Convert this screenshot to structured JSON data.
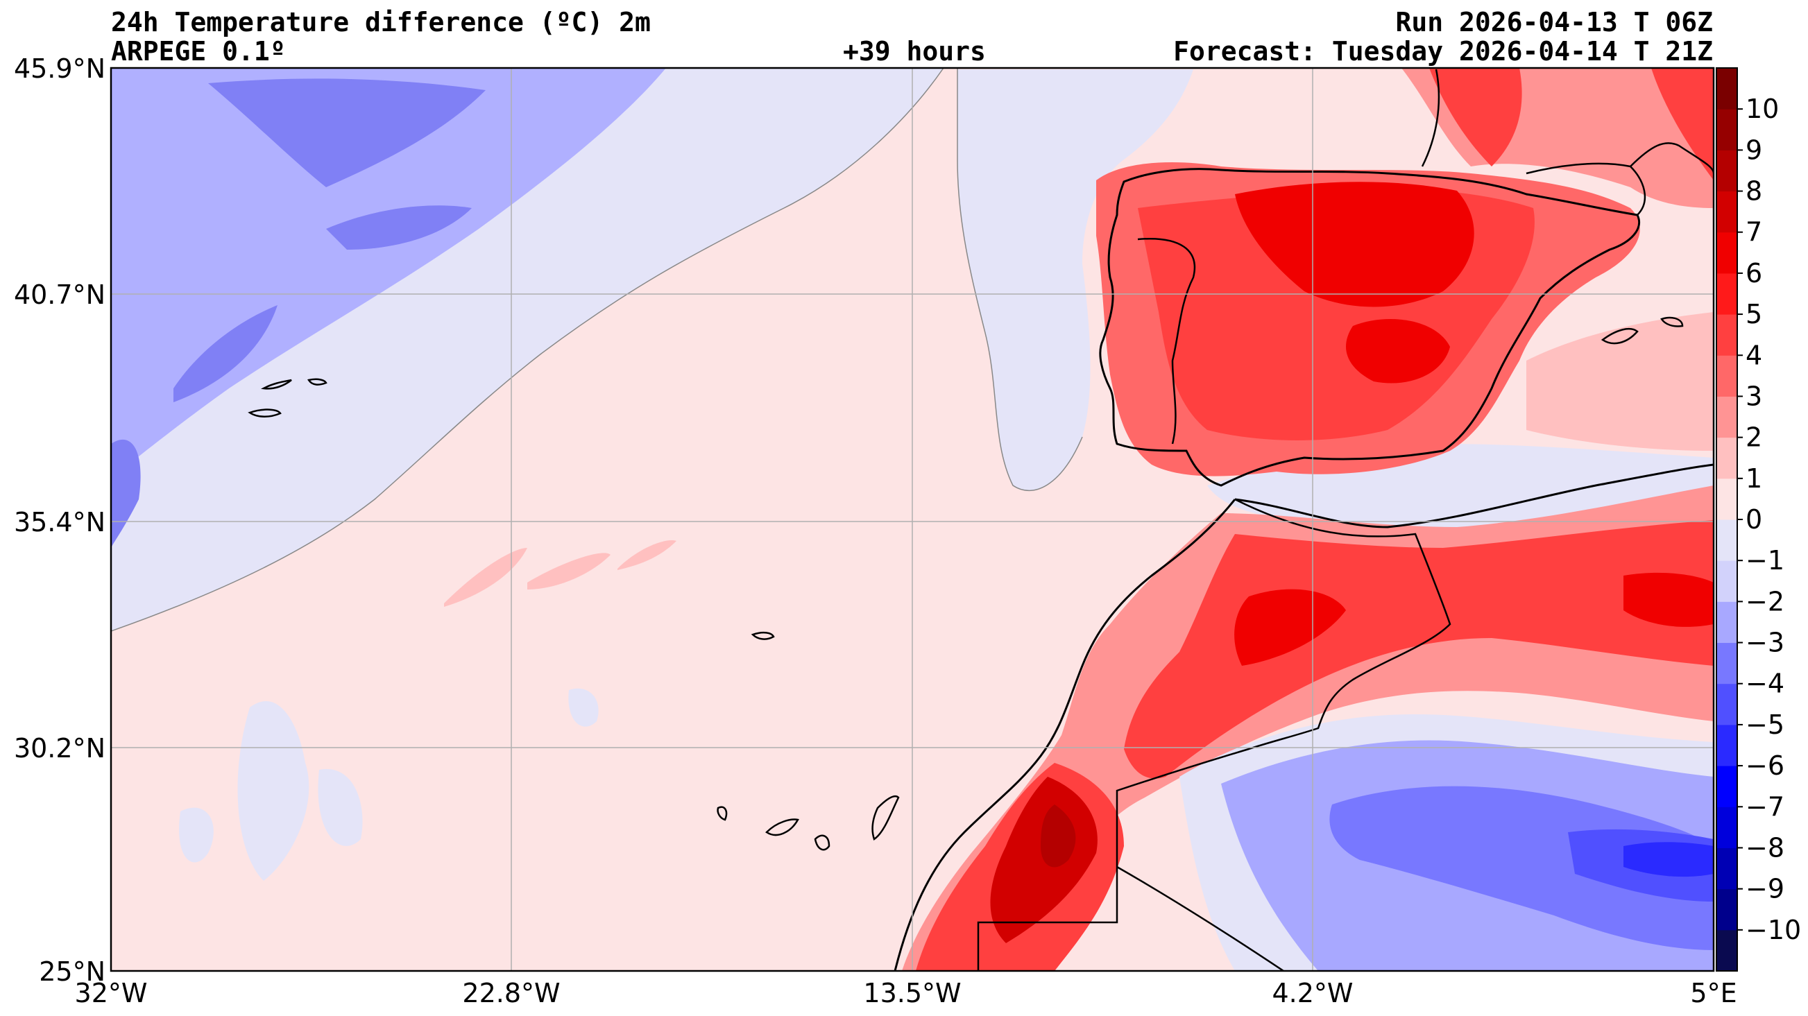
{
  "header": {
    "title": "24h Temperature difference (ºC) 2m",
    "model": "ARPEGE 0.1º",
    "lead_time": "+39 hours",
    "run": "Run 2026-04-13 T 06Z",
    "forecast": "Forecast: Tuesday 2026-04-14 T 21Z"
  },
  "map": {
    "lat_labels": [
      "45.9°N",
      "40.7°N",
      "35.4°N",
      "30.2°N",
      "25°N"
    ],
    "lon_labels": [
      "32°W",
      "22.8°W",
      "13.5°W",
      "4.2°W",
      "5°E"
    ],
    "lon_range": [
      -32,
      5
    ],
    "lat_range": [
      25,
      45.9
    ],
    "gridlines": true
  },
  "colorbar": {
    "ticks": [
      "10",
      "9",
      "8",
      "7",
      "6",
      "5",
      "4",
      "3",
      "2",
      "1",
      "0",
      "−1",
      "−2",
      "−3",
      "−4",
      "−5",
      "−6",
      "−7",
      "−8",
      "−9",
      "−10"
    ],
    "bins": [
      "#0a0a50",
      "#00008c",
      "#0000b4",
      "#0000dc",
      "#0000ff",
      "#2a2aff",
      "#5050ff",
      "#7878ff",
      "#a8a8ff",
      "#d2d2fb",
      "#e4e4f8",
      "#fde4e4",
      "#ffc0c0",
      "#ff9494",
      "#ff6868",
      "#ff4040",
      "#ff1a1a",
      "#f00000",
      "#d20000",
      "#b40000",
      "#960000",
      "#7a0000"
    ]
  }
}
